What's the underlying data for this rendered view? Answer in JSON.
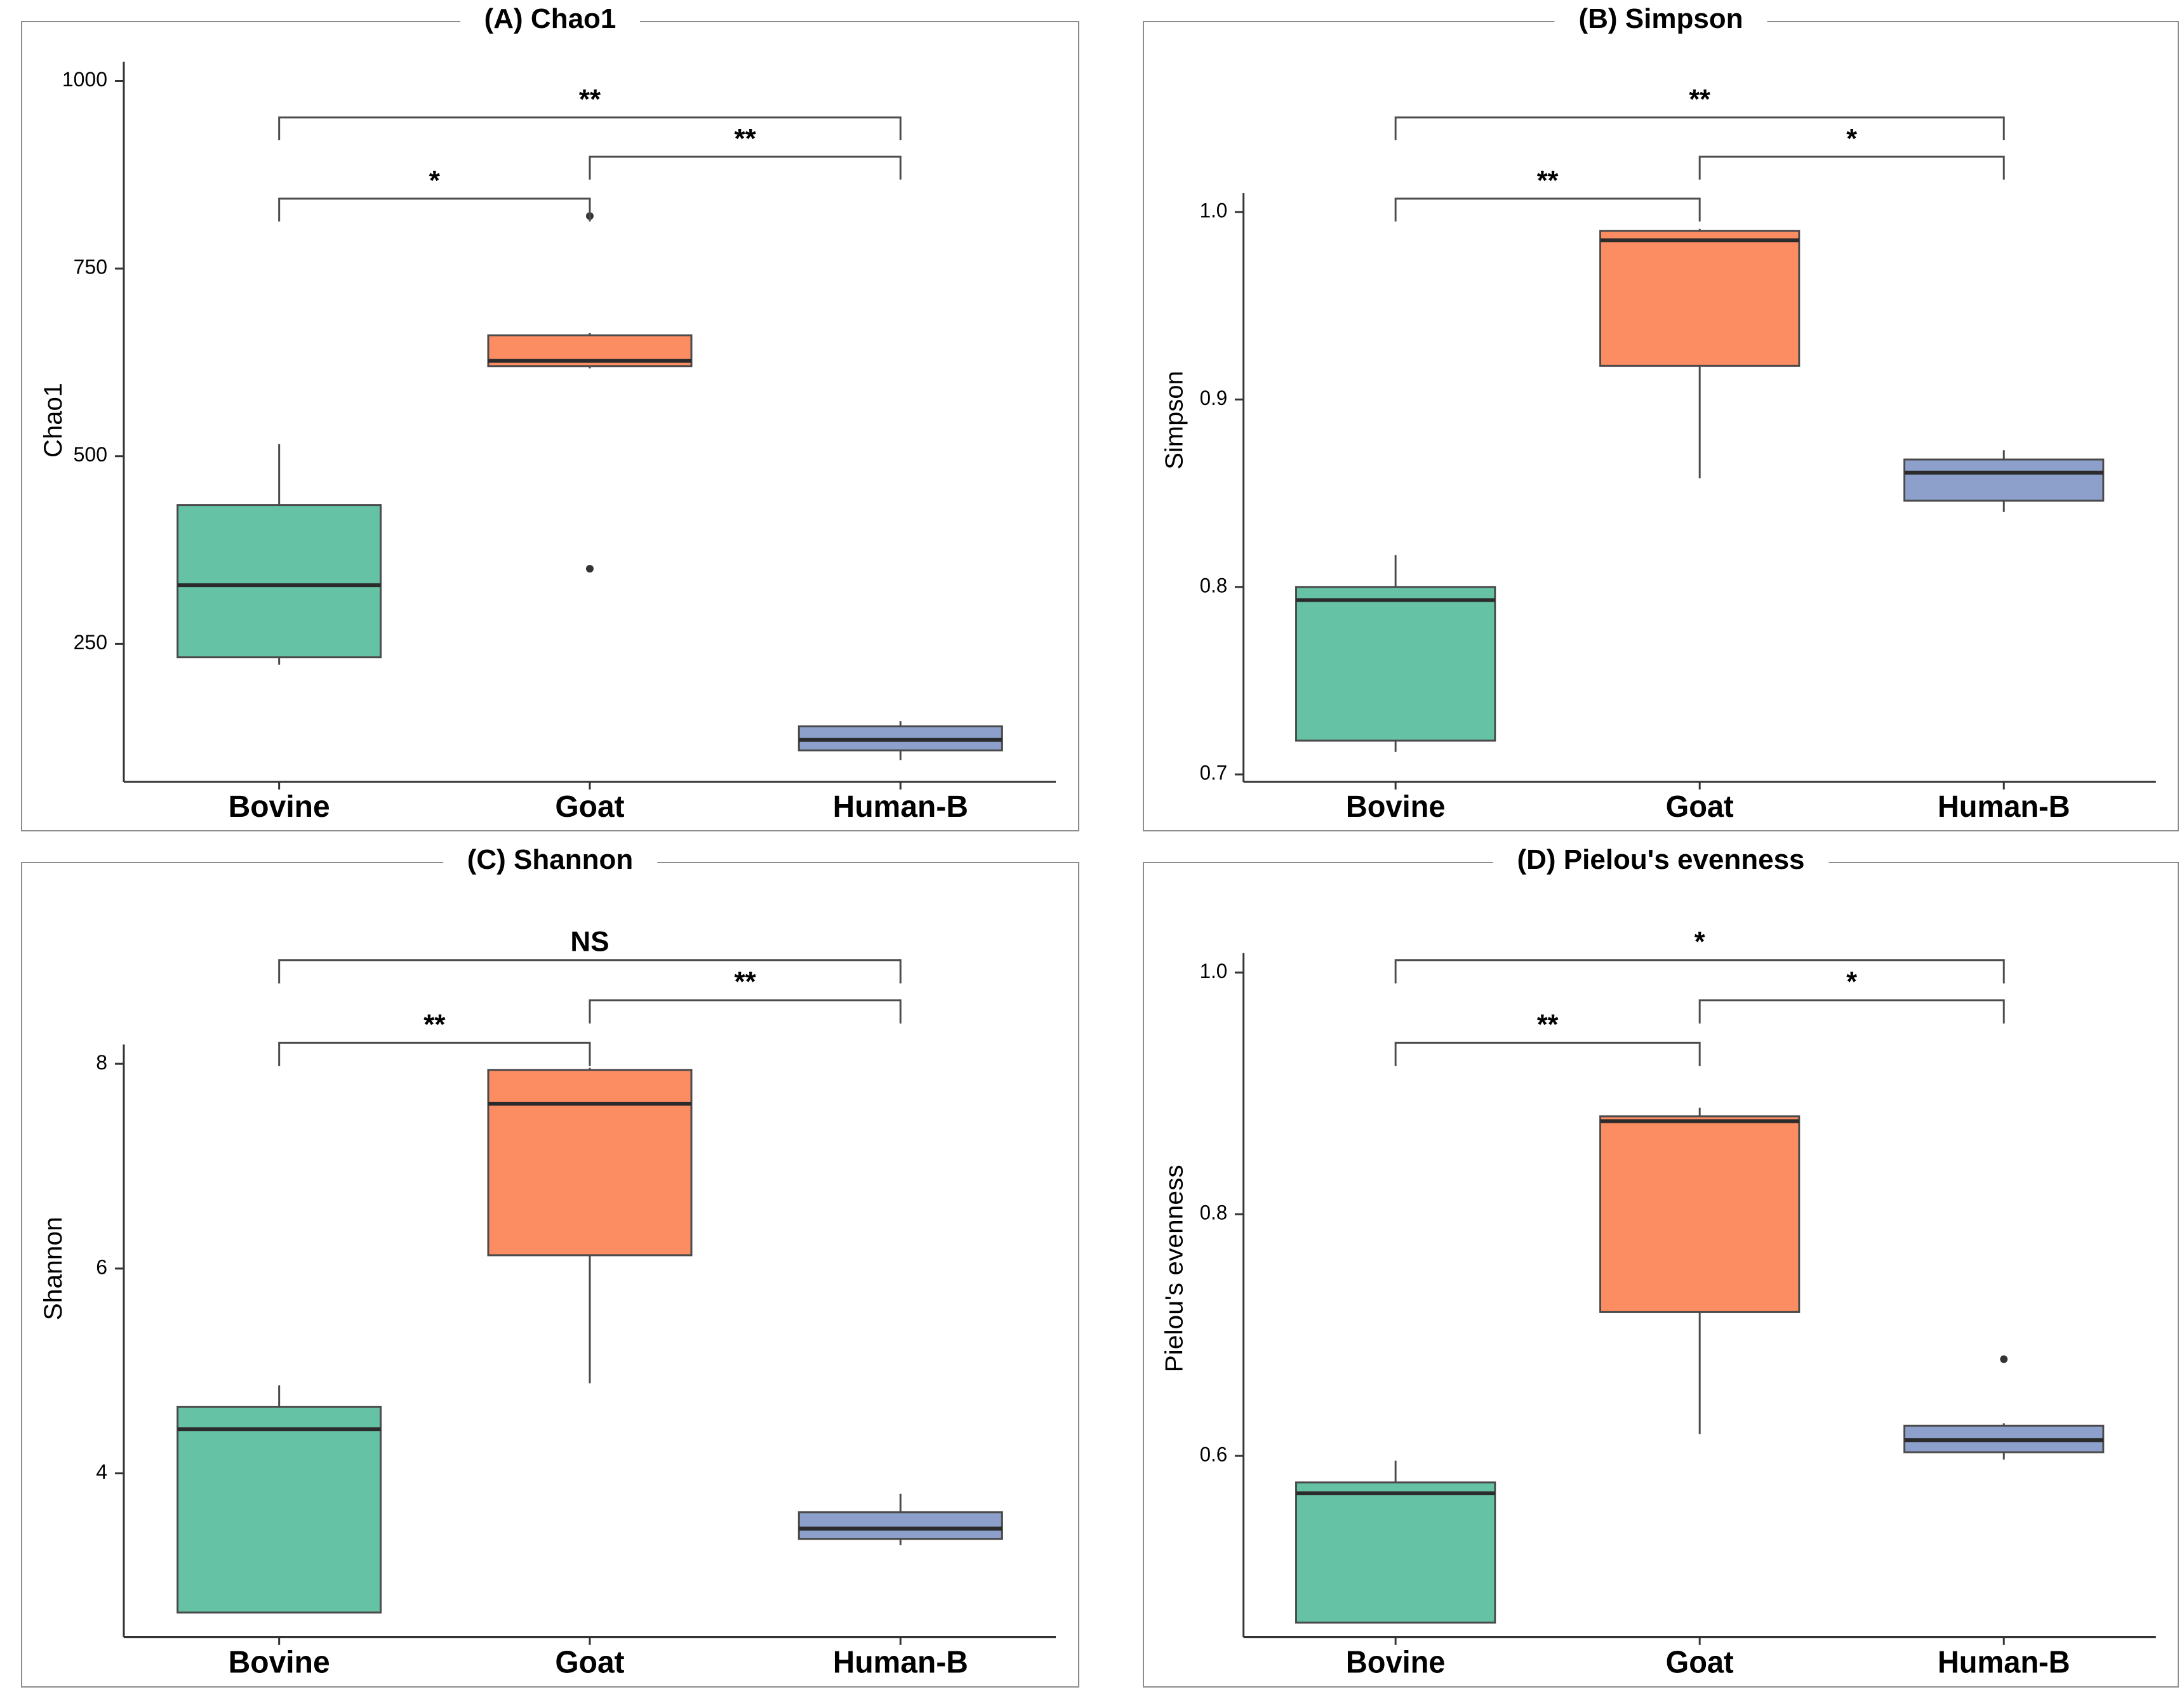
{
  "figure": {
    "type": "alpha-diversity-boxplot-grid",
    "rows": 2,
    "cols": 2
  },
  "colors": {
    "bovine": "#66C2A5",
    "goat": "#FC8D62",
    "human_b": "#8DA0CB",
    "box_stroke": "#4a4a4a",
    "median": "#2b2b2b",
    "axis": "#333333",
    "bracket": "#4d4d4d",
    "outlier": "#333333",
    "panel_border": "#8c8c8c",
    "text": "#000000"
  },
  "chart_data": [
    {
      "type": "box",
      "title": "(A) Chao1",
      "ylabel": "Chao1",
      "categories": [
        "Bovine",
        "Goat",
        "Human-B"
      ],
      "ylim": [
        66,
        1030
      ],
      "grid": false,
      "yticks": [
        {
          "value": 250,
          "label": "250"
        },
        {
          "value": 500,
          "label": "500"
        },
        {
          "value": 750,
          "label": "750"
        },
        {
          "value": 1000,
          "label": "1000"
        }
      ],
      "series": [
        {
          "name": "Bovine",
          "color_key": "bovine",
          "whislo": 222,
          "q1": 232,
          "med": 328,
          "q3": 435,
          "whishi": 516,
          "outliers": []
        },
        {
          "name": "Goat",
          "color_key": "goat",
          "whislo": 617,
          "q1": 620,
          "med": 627,
          "q3": 661,
          "whishi": 664,
          "outliers": [
            820,
            350
          ]
        },
        {
          "name": "Human-B",
          "color_key": "human_b",
          "whislo": 95,
          "q1": 108,
          "med": 122,
          "q3": 140,
          "whishi": 147,
          "outliers": []
        }
      ],
      "significance": [
        {
          "group_a": "Bovine",
          "group_b": "Human-B",
          "label": "**"
        },
        {
          "group_a": "Goat",
          "group_b": "Human-B",
          "label": "**"
        },
        {
          "group_a": "Bovine",
          "group_b": "Goat",
          "label": "*"
        }
      ]
    },
    {
      "type": "box",
      "title": "(B) Simpson",
      "ylabel": "Simpson",
      "categories": [
        "Bovine",
        "Goat",
        "Human-B"
      ],
      "ylim": [
        0.696,
        1.082
      ],
      "grid": false,
      "yticks": [
        {
          "value": 0.7,
          "label": "0.7"
        },
        {
          "value": 0.8,
          "label": "0.8"
        },
        {
          "value": 0.9,
          "label": "0.9"
        },
        {
          "value": 1.0,
          "label": "1.0"
        }
      ],
      "series": [
        {
          "name": "Bovine",
          "color_key": "bovine",
          "whislo": 0.712,
          "q1": 0.718,
          "med": 0.793,
          "q3": 0.8,
          "whishi": 0.817,
          "outliers": []
        },
        {
          "name": "Goat",
          "color_key": "goat",
          "whislo": 0.858,
          "q1": 0.918,
          "med": 0.985,
          "q3": 0.99,
          "whishi": 0.991,
          "outliers": []
        },
        {
          "name": "Human-B",
          "color_key": "human_b",
          "whislo": 0.84,
          "q1": 0.846,
          "med": 0.861,
          "q3": 0.868,
          "whishi": 0.873,
          "outliers": []
        }
      ],
      "significance": [
        {
          "group_a": "Bovine",
          "group_b": "Human-B",
          "label": "**"
        },
        {
          "group_a": "Goat",
          "group_b": "Human-B",
          "label": "*"
        },
        {
          "group_a": "Bovine",
          "group_b": "Goat",
          "label": "**"
        }
      ]
    },
    {
      "type": "box",
      "title": "(C) Shannon",
      "ylabel": "Shannon",
      "categories": [
        "Bovine",
        "Goat",
        "Human-B"
      ],
      "ylim": [
        2.4,
        9.6
      ],
      "grid": false,
      "yticks": [
        {
          "value": 4,
          "label": "4"
        },
        {
          "value": 6,
          "label": "6"
        },
        {
          "value": 8,
          "label": "8"
        }
      ],
      "series": [
        {
          "name": "Bovine",
          "color_key": "bovine",
          "whislo": 2.64,
          "q1": 2.64,
          "med": 4.43,
          "q3": 4.65,
          "whishi": 4.86,
          "outliers": []
        },
        {
          "name": "Goat",
          "color_key": "goat",
          "whislo": 4.88,
          "q1": 6.13,
          "med": 7.61,
          "q3": 7.94,
          "whishi": 7.96,
          "outliers": []
        },
        {
          "name": "Human-B",
          "color_key": "human_b",
          "whislo": 3.3,
          "q1": 3.36,
          "med": 3.46,
          "q3": 3.62,
          "whishi": 3.8,
          "outliers": []
        }
      ],
      "significance": [
        {
          "group_a": "Bovine",
          "group_b": "Human-B",
          "label": "NS"
        },
        {
          "group_a": "Goat",
          "group_b": "Human-B",
          "label": "**"
        },
        {
          "group_a": "Bovine",
          "group_b": "Goat",
          "label": "**"
        }
      ]
    },
    {
      "type": "box",
      "title": "(D) Pielou's evenness",
      "ylabel": "Pielou's evenness",
      "categories": [
        "Bovine",
        "Goat",
        "Human-B"
      ],
      "ylim": [
        0.45,
        1.06
      ],
      "grid": false,
      "yticks": [
        {
          "value": 0.6,
          "label": "0.6"
        },
        {
          "value": 0.8,
          "label": "0.8"
        },
        {
          "value": 1.0,
          "label": "1.0"
        }
      ],
      "series": [
        {
          "name": "Bovine",
          "color_key": "bovine",
          "whislo": 0.462,
          "q1": 0.462,
          "med": 0.569,
          "q3": 0.578,
          "whishi": 0.596,
          "outliers": []
        },
        {
          "name": "Goat",
          "color_key": "goat",
          "whislo": 0.618,
          "q1": 0.719,
          "med": 0.877,
          "q3": 0.881,
          "whishi": 0.888,
          "outliers": []
        },
        {
          "name": "Human-B",
          "color_key": "human_b",
          "whislo": 0.597,
          "q1": 0.603,
          "med": 0.613,
          "q3": 0.625,
          "whishi": 0.627,
          "outliers": [
            0.68
          ]
        }
      ],
      "significance": [
        {
          "group_a": "Bovine",
          "group_b": "Human-B",
          "label": "*"
        },
        {
          "group_a": "Goat",
          "group_b": "Human-B",
          "label": "*"
        },
        {
          "group_a": "Bovine",
          "group_b": "Goat",
          "label": "**"
        }
      ]
    }
  ]
}
